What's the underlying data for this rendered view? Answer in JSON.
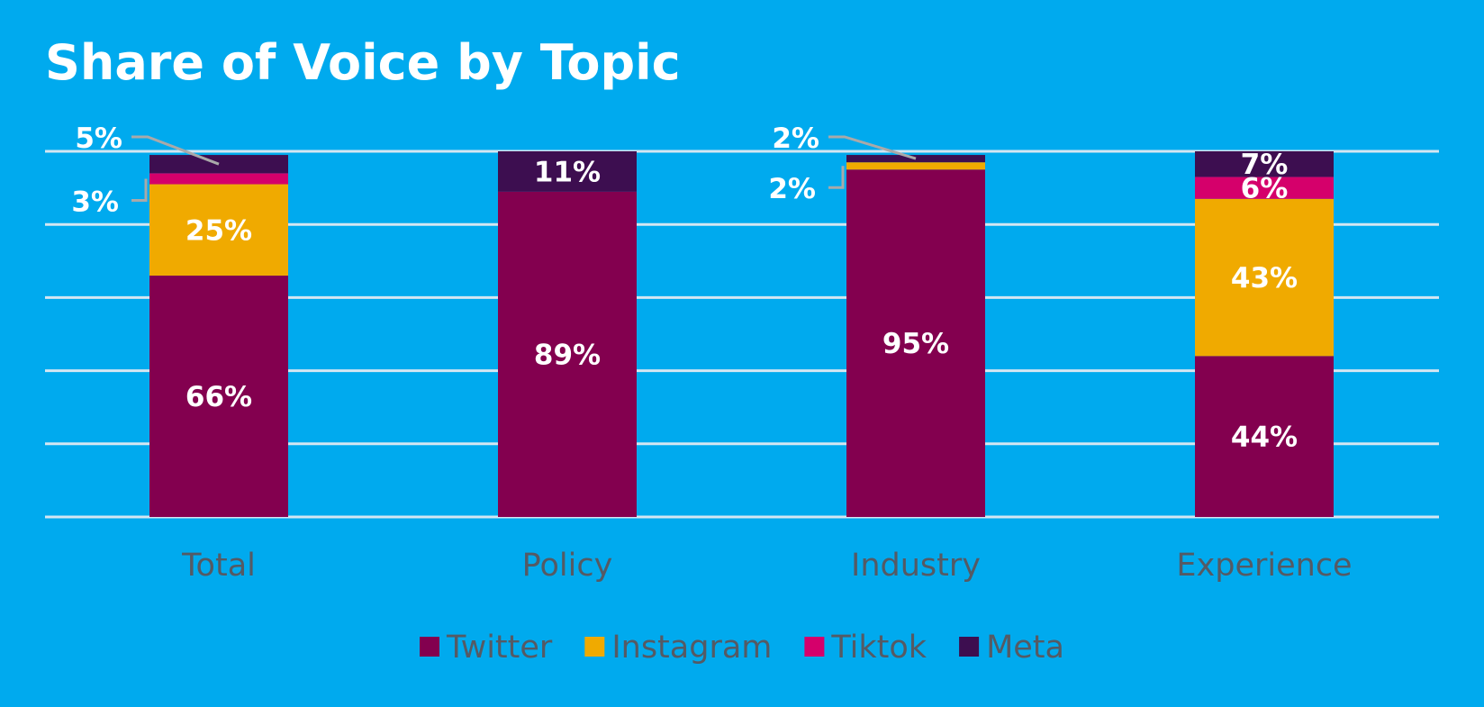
{
  "colors": {
    "background": "#00aaee",
    "gridline": "#d4e6f2",
    "twitter": "#83004f",
    "instagram": "#f0aa00",
    "tiktok": "#d5006b",
    "meta": "#3d0e50",
    "leader": "#a9a9a9",
    "text_light": "#ffffff",
    "text_dark": "#555a64"
  },
  "chart_data": {
    "type": "bar",
    "stacked": true,
    "title": "Share of Voice by Topic",
    "categories": [
      "Total",
      "Policy",
      "Industry",
      "Experience"
    ],
    "series": [
      {
        "name": "Twitter",
        "values": [
          66,
          89,
          95,
          44
        ],
        "labels": [
          "66%",
          "89%",
          "95%",
          "44%"
        ]
      },
      {
        "name": "Instagram",
        "values": [
          25,
          0,
          2,
          43
        ],
        "labels": [
          "25%",
          "",
          "2%",
          "43%"
        ]
      },
      {
        "name": "Tiktok",
        "values": [
          3,
          0,
          0,
          6
        ],
        "labels": [
          "3%",
          "",
          "",
          "6%"
        ]
      },
      {
        "name": "Meta",
        "values": [
          5,
          11,
          2,
          7
        ],
        "labels": [
          "5%",
          "11%",
          "2%",
          "7%"
        ]
      }
    ],
    "ylim": [
      0,
      100
    ],
    "grid": true,
    "legend_position": "bottom"
  }
}
